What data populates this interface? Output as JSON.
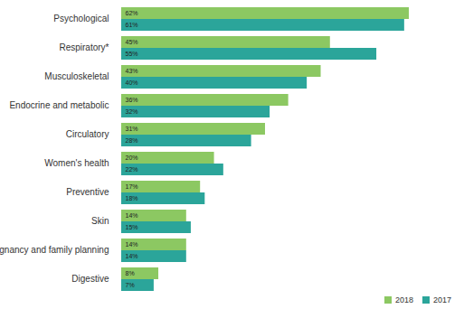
{
  "chart_data": {
    "type": "bar",
    "orientation": "horizontal",
    "data_labels": true,
    "tick_labels": "y",
    "legend": "bottom-right",
    "categories": [
      "Psychological",
      "Respiratory*",
      "Musculoskeletal",
      "Endocrine and metabolic",
      "Circulatory",
      "Women's health",
      "Preventive",
      "Skin",
      "Pregnancy and family planning",
      "Digestive"
    ],
    "xlim": [
      0,
      70
    ],
    "series": [
      {
        "name": "2018",
        "color": "#8cc862",
        "values": [
          62,
          45,
          43,
          36,
          31,
          20,
          17,
          14,
          14,
          8
        ],
        "value_labels": [
          "62%",
          "45%",
          "43%",
          "36%",
          "31%",
          "20%",
          "17%",
          "14%",
          "14%",
          "8%"
        ]
      },
      {
        "name": "2017",
        "color": "#2ba59a",
        "values": [
          61,
          55,
          40,
          32,
          28,
          22,
          18,
          15,
          14,
          7
        ],
        "value_labels": [
          "61%",
          "55%",
          "40%",
          "32%",
          "28%",
          "22%",
          "18%",
          "15%",
          "14%",
          "7%"
        ]
      }
    ]
  }
}
